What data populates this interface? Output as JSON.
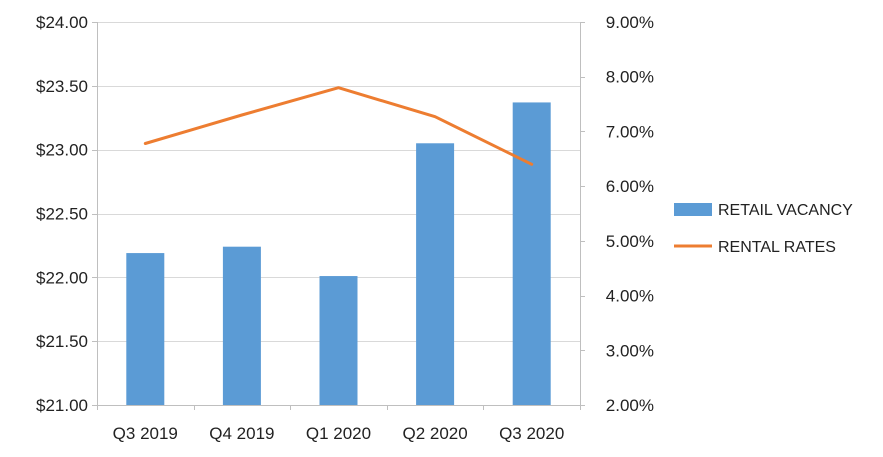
{
  "chart_data": {
    "type": "bar",
    "categories": [
      "Q3 2019",
      "Q4 2019",
      "Q1 2020",
      "Q2 2020",
      "Q3 2020"
    ],
    "series": [
      {
        "name": "RETAIL VACANCY",
        "type": "bar",
        "axis": "left",
        "values": [
          22.19,
          22.24,
          22.01,
          23.05,
          23.37
        ],
        "color": "#5B9BD5"
      },
      {
        "name": "RENTAL RATES",
        "type": "line",
        "axis": "right",
        "values": [
          6.78,
          7.3,
          7.8,
          7.27,
          6.4
        ],
        "color": "#ED7D31"
      }
    ],
    "y_left": {
      "min": 21.0,
      "max": 24.0,
      "step": 0.5,
      "ticks": [
        "$21.00",
        "$21.50",
        "$22.00",
        "$22.50",
        "$23.00",
        "$23.50",
        "$24.00"
      ]
    },
    "y_right": {
      "min": 2.0,
      "max": 9.0,
      "step": 1.0,
      "ticks": [
        "2.00%",
        "3.00%",
        "4.00%",
        "5.00%",
        "6.00%",
        "7.00%",
        "8.00%",
        "9.00%"
      ]
    },
    "grid": true,
    "legend_position": "right"
  }
}
